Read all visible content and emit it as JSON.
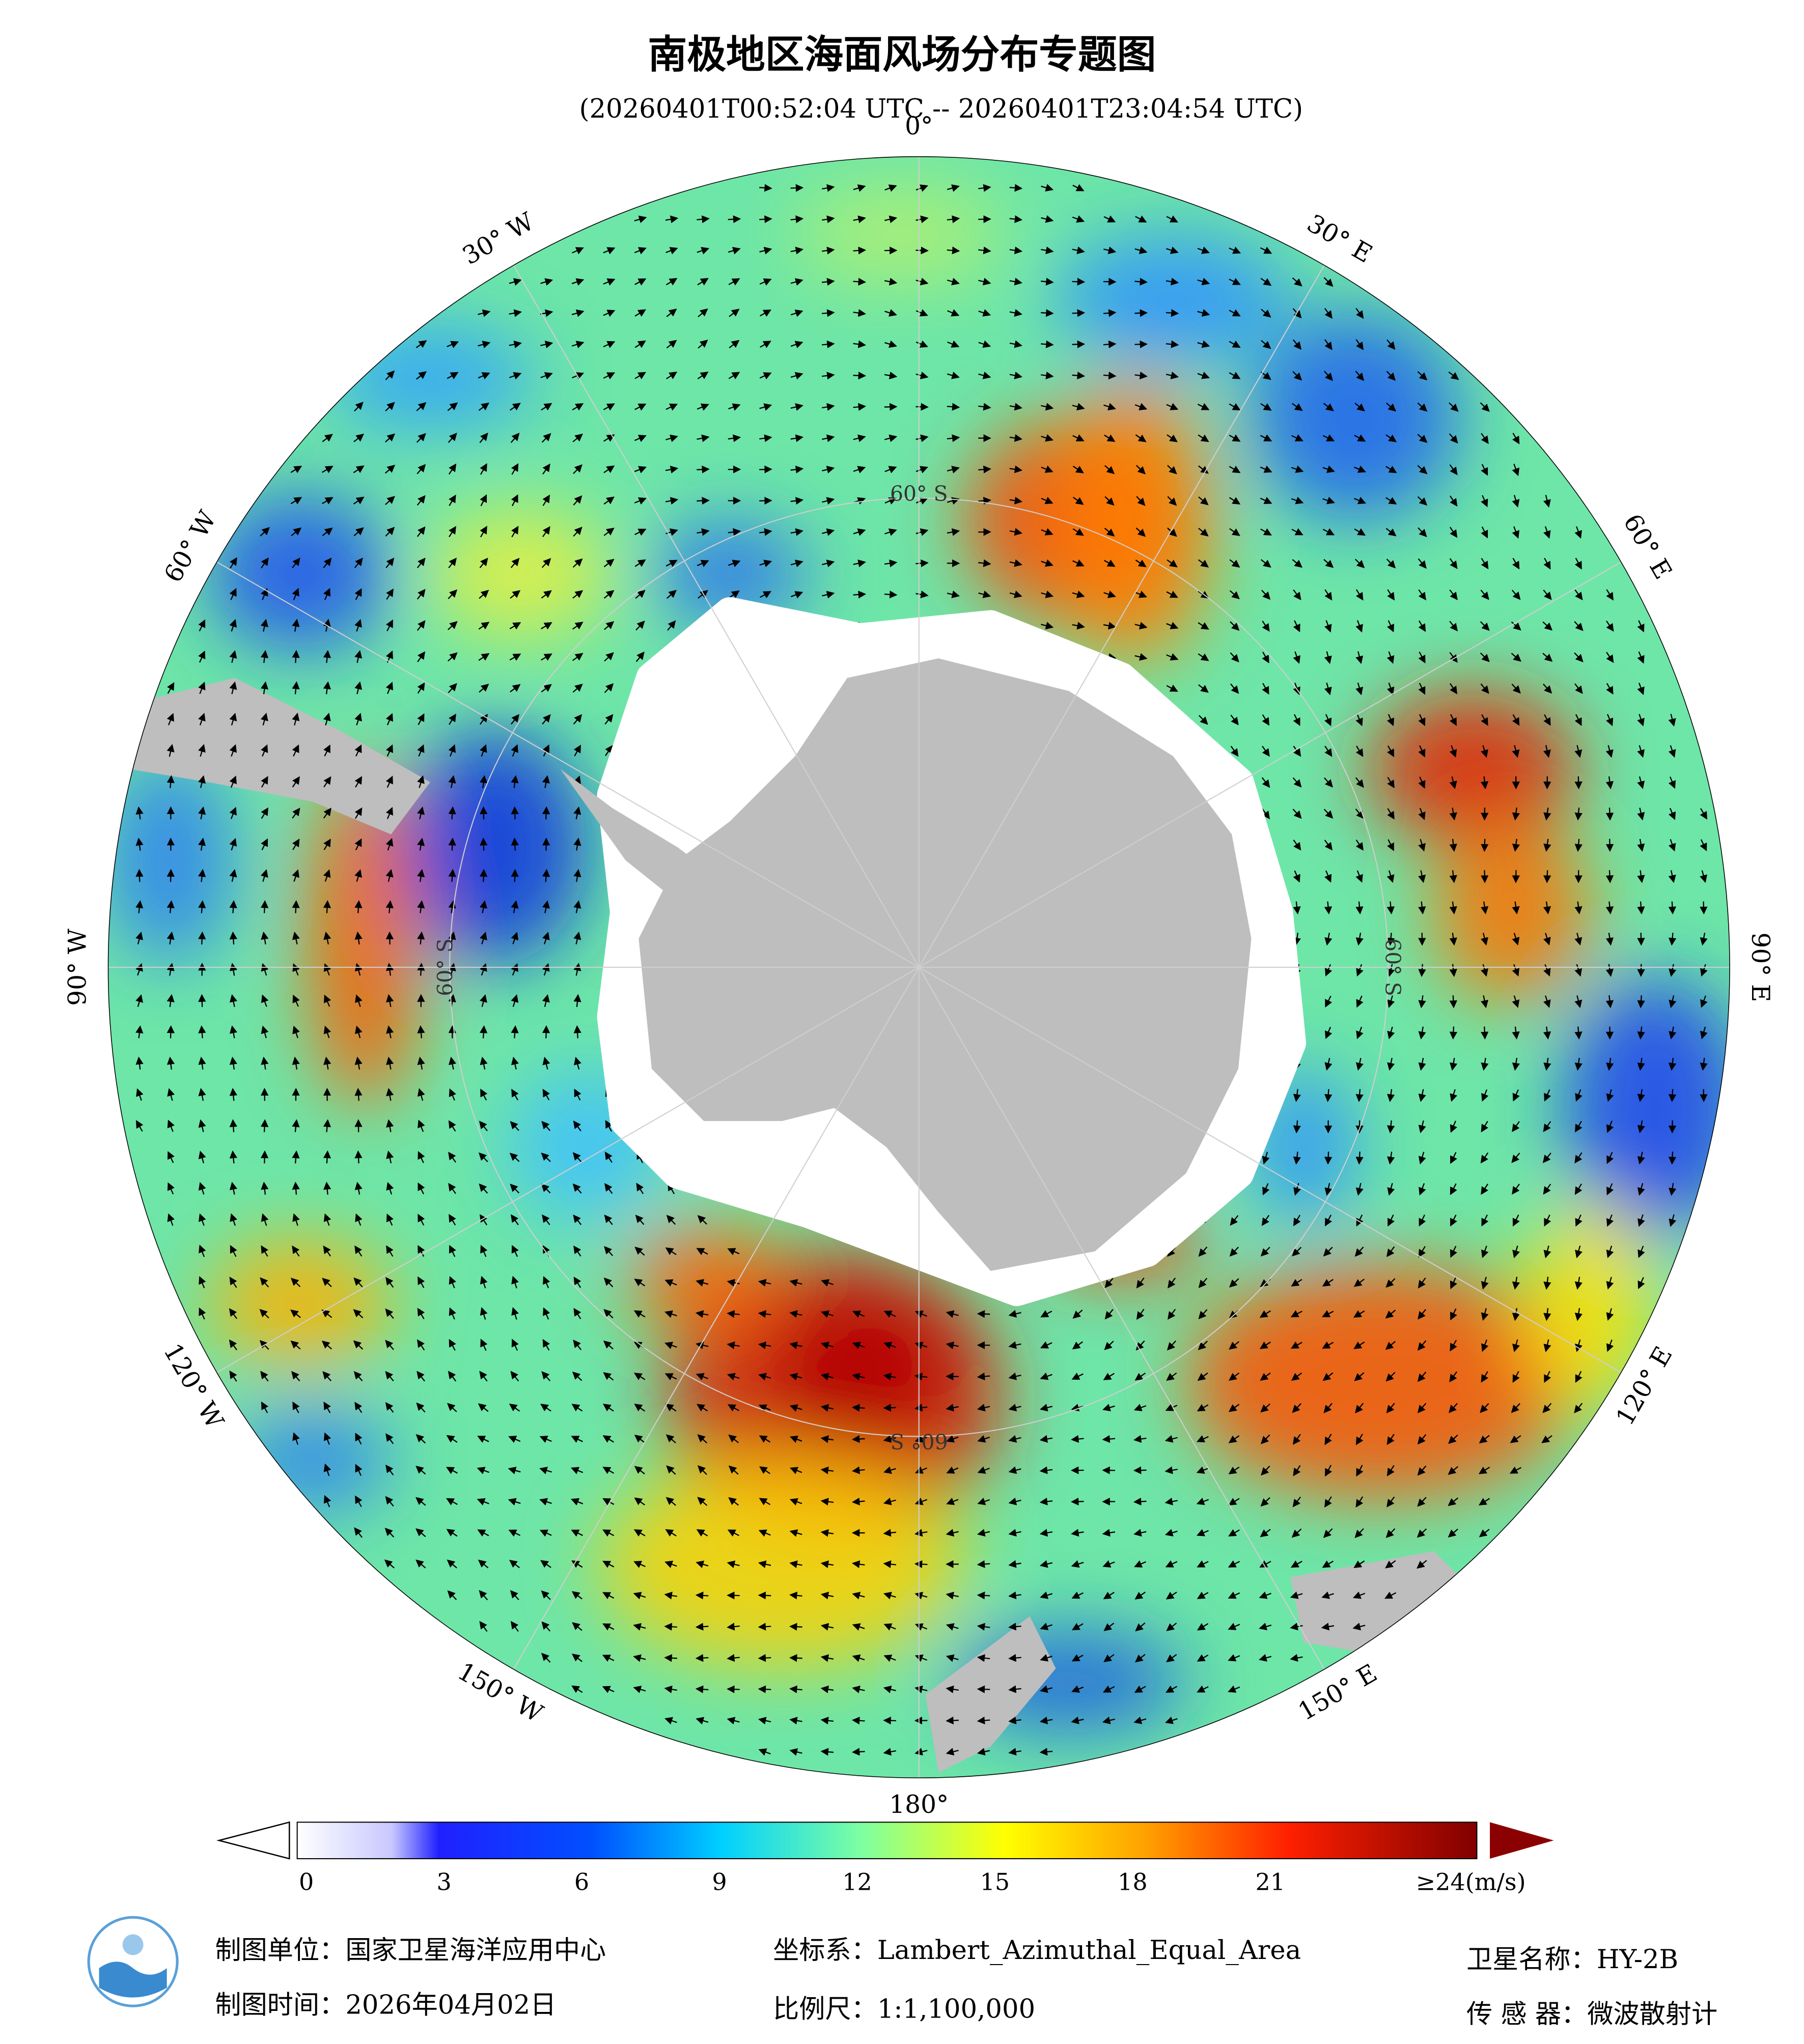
{
  "header": {
    "title": "南极地区海面风场分布专题图",
    "subtitle": "(20260401T00:52:04 UTC -- 20260401T23:04:54 UTC)"
  },
  "map": {
    "lon_labels": [
      "0°",
      "30° E",
      "60° E",
      "90° E",
      "120° E",
      "150° E",
      "180°",
      "150° W",
      "120° W",
      "90° W",
      "60° W",
      "30° W"
    ],
    "lat_label": "60° S"
  },
  "colorbar": {
    "ticks": [
      0,
      3,
      6,
      9,
      12,
      15,
      18,
      21
    ],
    "lim": [
      -0.2,
      25.5
    ],
    "max_value": 24,
    "max_label": "≥24(m/s)"
  },
  "footer": {
    "unit": "制图单位：国家卫星海洋应用中心",
    "projection": "坐标系：Lambert_Azimuthal_Equal_Area",
    "satellite": "卫星名称：HY-2B",
    "date": "制图时间：2026年04月02日",
    "scale": "比例尺：1:1,100,000",
    "sensor": "传 感 器：微波散射计"
  }
}
